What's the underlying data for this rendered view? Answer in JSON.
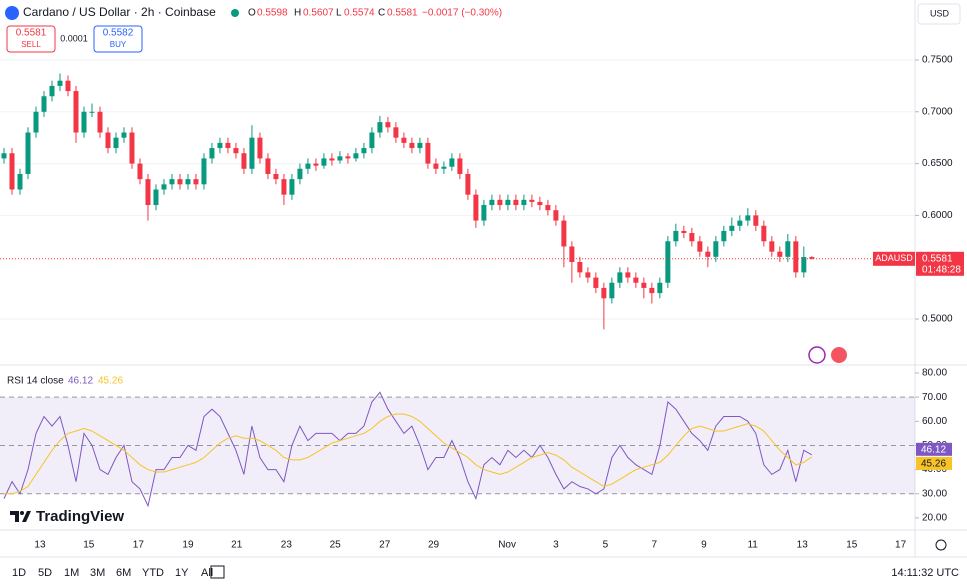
{
  "header": {
    "symbol": "Cardano / US Dollar · 2h · Coinbase",
    "o_label": "O",
    "o": "0.5598",
    "h_label": "H",
    "h": "0.5607",
    "l_label": "L",
    "l": "0.5574",
    "c_label": "C",
    "c": "0.5581",
    "change": "−0.0017 (−0.30%)",
    "sell_price": "0.5581",
    "sell": "SELL",
    "spread": "0.0001",
    "buy_price": "0.5582",
    "buy": "BUY",
    "currency": "USD",
    "logo": "TradingView"
  },
  "toolbar": {
    "ranges": [
      "1D",
      "5D",
      "1M",
      "3M",
      "6M",
      "YTD",
      "1Y",
      "All"
    ],
    "clock": "14:11:32 UTC"
  },
  "chart_data": [
    {
      "type": "candlestick",
      "up_color": "#089981",
      "down_color": "#f23645",
      "xlim": [
        -0.5,
        113.9
      ],
      "ylim": [
        0.4556,
        0.8079
      ],
      "yticks": [
        {
          "value": 0.75,
          "label": "0.7500"
        },
        {
          "value": 0.7,
          "label": "0.7000"
        },
        {
          "value": 0.65,
          "label": "0.6500"
        },
        {
          "value": 0.6,
          "label": "0.6000"
        },
        {
          "value": 0.5,
          "label": "0.5000"
        }
      ],
      "xticks": [
        {
          "value": 4.5,
          "label": "13"
        },
        {
          "value": 10.6,
          "label": "15"
        },
        {
          "value": 16.8,
          "label": "17"
        },
        {
          "value": 23,
          "label": "19"
        },
        {
          "value": 29.1,
          "label": "21"
        },
        {
          "value": 35.3,
          "label": "23"
        },
        {
          "value": 41.4,
          "label": "25"
        },
        {
          "value": 47.6,
          "label": "27"
        },
        {
          "value": 53.7,
          "label": "29"
        },
        {
          "value": 62.9,
          "label": "Nov"
        },
        {
          "value": 69,
          "label": "3"
        },
        {
          "value": 75.2,
          "label": "5"
        },
        {
          "value": 81.3,
          "label": "7"
        },
        {
          "value": 87.5,
          "label": "9"
        },
        {
          "value": 93.6,
          "label": "11"
        },
        {
          "value": 99.8,
          "label": "13"
        },
        {
          "value": 106,
          "label": "15"
        },
        {
          "value": 112.1,
          "label": "17"
        }
      ],
      "last_price": 0.5581,
      "last_price_symbol": "ADAUSD",
      "countdown": "01:48:28",
      "ohlc": [
        [
          0.655,
          0.665,
          0.65,
          0.66
        ],
        [
          0.66,
          0.665,
          0.62,
          0.625
        ],
        [
          0.625,
          0.645,
          0.62,
          0.64
        ],
        [
          0.64,
          0.685,
          0.635,
          0.68
        ],
        [
          0.68,
          0.705,
          0.675,
          0.7
        ],
        [
          0.7,
          0.72,
          0.695,
          0.715
        ],
        [
          0.715,
          0.73,
          0.71,
          0.725
        ],
        [
          0.725,
          0.737,
          0.72,
          0.73
        ],
        [
          0.73,
          0.735,
          0.715,
          0.72
        ],
        [
          0.72,
          0.725,
          0.67,
          0.68
        ],
        [
          0.68,
          0.705,
          0.675,
          0.7
        ],
        [
          0.7,
          0.708,
          0.695,
          0.7
        ],
        [
          0.7,
          0.705,
          0.675,
          0.68
        ],
        [
          0.68,
          0.685,
          0.66,
          0.665
        ],
        [
          0.665,
          0.68,
          0.66,
          0.675
        ],
        [
          0.675,
          0.685,
          0.67,
          0.68
        ],
        [
          0.68,
          0.685,
          0.645,
          0.65
        ],
        [
          0.65,
          0.655,
          0.63,
          0.635
        ],
        [
          0.635,
          0.64,
          0.595,
          0.61
        ],
        [
          0.61,
          0.63,
          0.605,
          0.625
        ],
        [
          0.625,
          0.635,
          0.62,
          0.63
        ],
        [
          0.63,
          0.64,
          0.625,
          0.635
        ],
        [
          0.635,
          0.64,
          0.625,
          0.63
        ],
        [
          0.63,
          0.64,
          0.625,
          0.635
        ],
        [
          0.635,
          0.64,
          0.625,
          0.63
        ],
        [
          0.63,
          0.66,
          0.625,
          0.655
        ],
        [
          0.655,
          0.67,
          0.65,
          0.665
        ],
        [
          0.665,
          0.675,
          0.66,
          0.67
        ],
        [
          0.67,
          0.675,
          0.66,
          0.665
        ],
        [
          0.665,
          0.67,
          0.655,
          0.66
        ],
        [
          0.66,
          0.665,
          0.64,
          0.645
        ],
        [
          0.645,
          0.687,
          0.64,
          0.675
        ],
        [
          0.675,
          0.68,
          0.65,
          0.655
        ],
        [
          0.655,
          0.66,
          0.635,
          0.64
        ],
        [
          0.64,
          0.645,
          0.63,
          0.635
        ],
        [
          0.635,
          0.64,
          0.61,
          0.62
        ],
        [
          0.62,
          0.64,
          0.615,
          0.635
        ],
        [
          0.635,
          0.65,
          0.63,
          0.645
        ],
        [
          0.645,
          0.655,
          0.64,
          0.65
        ],
        [
          0.65,
          0.655,
          0.643,
          0.648
        ],
        [
          0.648,
          0.66,
          0.645,
          0.655
        ],
        [
          0.655,
          0.66,
          0.648,
          0.653
        ],
        [
          0.653,
          0.662,
          0.65,
          0.657
        ],
        [
          0.657,
          0.66,
          0.65,
          0.655
        ],
        [
          0.655,
          0.665,
          0.652,
          0.66
        ],
        [
          0.66,
          0.67,
          0.655,
          0.665
        ],
        [
          0.665,
          0.685,
          0.66,
          0.68
        ],
        [
          0.68,
          0.696,
          0.675,
          0.69
        ],
        [
          0.69,
          0.695,
          0.68,
          0.685
        ],
        [
          0.685,
          0.69,
          0.67,
          0.675
        ],
        [
          0.675,
          0.68,
          0.665,
          0.67
        ],
        [
          0.67,
          0.675,
          0.66,
          0.665
        ],
        [
          0.665,
          0.675,
          0.66,
          0.67
        ],
        [
          0.67,
          0.675,
          0.645,
          0.65
        ],
        [
          0.65,
          0.655,
          0.64,
          0.645
        ],
        [
          0.645,
          0.652,
          0.64,
          0.647
        ],
        [
          0.647,
          0.66,
          0.643,
          0.655
        ],
        [
          0.655,
          0.66,
          0.635,
          0.64
        ],
        [
          0.64,
          0.645,
          0.615,
          0.62
        ],
        [
          0.62,
          0.625,
          0.588,
          0.595
        ],
        [
          0.595,
          0.615,
          0.59,
          0.61
        ],
        [
          0.61,
          0.62,
          0.605,
          0.615
        ],
        [
          0.615,
          0.62,
          0.605,
          0.61
        ],
        [
          0.61,
          0.62,
          0.605,
          0.615
        ],
        [
          0.615,
          0.62,
          0.605,
          0.61
        ],
        [
          0.61,
          0.62,
          0.605,
          0.615
        ],
        [
          0.615,
          0.62,
          0.608,
          0.613
        ],
        [
          0.613,
          0.618,
          0.605,
          0.61
        ],
        [
          0.61,
          0.615,
          0.6,
          0.605
        ],
        [
          0.605,
          0.61,
          0.59,
          0.595
        ],
        [
          0.595,
          0.6,
          0.55,
          0.57
        ],
        [
          0.57,
          0.575,
          0.535,
          0.555
        ],
        [
          0.555,
          0.56,
          0.54,
          0.545
        ],
        [
          0.545,
          0.55,
          0.535,
          0.54
        ],
        [
          0.54,
          0.545,
          0.525,
          0.53
        ],
        [
          0.53,
          0.535,
          0.49,
          0.52
        ],
        [
          0.52,
          0.54,
          0.515,
          0.535
        ],
        [
          0.535,
          0.55,
          0.53,
          0.545
        ],
        [
          0.545,
          0.55,
          0.535,
          0.54
        ],
        [
          0.54,
          0.545,
          0.53,
          0.535
        ],
        [
          0.535,
          0.54,
          0.52,
          0.53
        ],
        [
          0.53,
          0.535,
          0.515,
          0.525
        ],
        [
          0.525,
          0.54,
          0.52,
          0.535
        ],
        [
          0.535,
          0.58,
          0.53,
          0.575
        ],
        [
          0.575,
          0.592,
          0.57,
          0.585
        ],
        [
          0.585,
          0.59,
          0.578,
          0.583
        ],
        [
          0.583,
          0.588,
          0.57,
          0.575
        ],
        [
          0.575,
          0.58,
          0.56,
          0.565
        ],
        [
          0.565,
          0.57,
          0.55,
          0.56
        ],
        [
          0.56,
          0.58,
          0.555,
          0.575
        ],
        [
          0.575,
          0.59,
          0.57,
          0.585
        ],
        [
          0.585,
          0.598,
          0.58,
          0.59
        ],
        [
          0.59,
          0.6,
          0.585,
          0.595
        ],
        [
          0.595,
          0.607,
          0.59,
          0.6
        ],
        [
          0.6,
          0.605,
          0.585,
          0.59
        ],
        [
          0.59,
          0.595,
          0.57,
          0.575
        ],
        [
          0.575,
          0.58,
          0.56,
          0.565
        ],
        [
          0.565,
          0.57,
          0.555,
          0.56
        ],
        [
          0.56,
          0.582,
          0.555,
          0.575
        ],
        [
          0.575,
          0.58,
          0.54,
          0.545
        ],
        [
          0.545,
          0.57,
          0.54,
          0.5598
        ],
        [
          0.5598,
          0.5607,
          0.5574,
          0.5581
        ]
      ]
    },
    {
      "type": "line",
      "title": "RSI 14 close",
      "xlim": [
        -0.5,
        113.9
      ],
      "ylim": [
        15,
        83.3
      ],
      "yticks": [
        {
          "value": 80,
          "label": "80.00"
        },
        {
          "value": 70,
          "label": "70.00"
        },
        {
          "value": 60,
          "label": "60.00"
        },
        {
          "value": 50,
          "label": "50.00"
        },
        {
          "value": 40,
          "label": "40.00"
        },
        {
          "value": 30,
          "label": "30.00"
        },
        {
          "value": 20,
          "label": "20.00"
        }
      ],
      "band": [
        30,
        70
      ],
      "midline": 50,
      "series": [
        {
          "color": "#7e57c2",
          "values": [
            28,
            35,
            30,
            40,
            55,
            62,
            58,
            62,
            50,
            35,
            55,
            50,
            40,
            38,
            45,
            50,
            35,
            32,
            25,
            40,
            40,
            45,
            45,
            50,
            48,
            62,
            65,
            62,
            55,
            48,
            38,
            58,
            45,
            40,
            40,
            35,
            50,
            58,
            52,
            55,
            55,
            55,
            52,
            55,
            55,
            58,
            68,
            72,
            65,
            60,
            55,
            58,
            50,
            40,
            45,
            45,
            52,
            45,
            35,
            28,
            42,
            45,
            42,
            48,
            45,
            48,
            45,
            50,
            45,
            38,
            32,
            35,
            33,
            32,
            30,
            32,
            45,
            50,
            45,
            42,
            40,
            38,
            50,
            68,
            65,
            60,
            55,
            52,
            48,
            58,
            62,
            62,
            62,
            60,
            55,
            42,
            38,
            40,
            48,
            35,
            48,
            46.12
          ]
        },
        {
          "color": "#f7c325",
          "values": [
            30,
            30,
            31,
            33,
            38,
            43,
            48,
            52,
            55,
            56,
            57,
            56,
            54,
            52,
            50,
            48,
            45,
            42,
            40,
            39,
            39,
            40,
            41,
            42,
            43,
            45,
            48,
            51,
            53,
            54,
            53,
            53,
            52,
            50,
            48,
            45,
            44,
            44,
            45,
            47,
            49,
            51,
            52,
            53,
            54,
            55,
            57,
            60,
            62,
            63,
            63,
            62,
            60,
            57,
            54,
            51,
            49,
            47,
            45,
            42,
            40,
            39,
            38,
            39,
            41,
            43,
            45,
            46,
            47,
            46,
            44,
            41,
            39,
            37,
            35,
            33,
            34,
            36,
            38,
            40,
            41,
            42,
            43,
            46,
            50,
            54,
            57,
            58,
            57,
            56,
            56,
            57,
            58,
            59,
            58,
            56,
            52,
            48,
            45,
            42,
            43,
            45.26
          ]
        }
      ]
    }
  ]
}
